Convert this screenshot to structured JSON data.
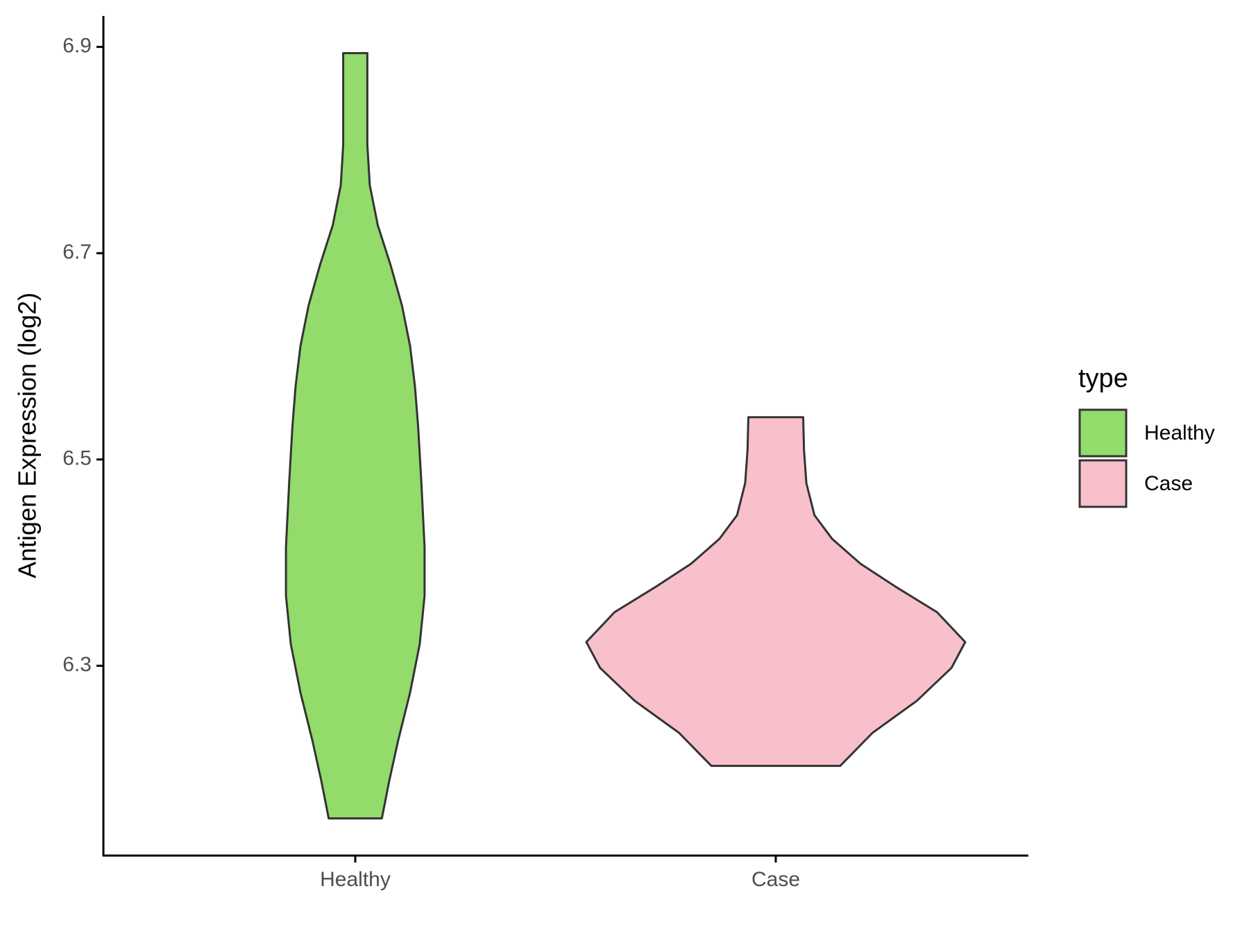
{
  "chart_data": {
    "type": "violin",
    "y_label": "Antigen Expression (log2)",
    "categories": [
      "Healthy",
      "Case"
    ],
    "ylim": [
      6.116,
      6.93
    ],
    "yticks": [
      6.3,
      6.5,
      6.7,
      6.9
    ],
    "legend_title": "type",
    "legend": "right",
    "series": [
      {
        "name": "Healthy",
        "color": "#93db6b",
        "values": [
          6.894,
          6.868,
          6.805,
          6.766,
          6.727,
          6.688,
          6.649,
          6.61,
          6.571,
          6.532,
          6.477,
          6.415,
          6.368,
          6.321,
          6.274,
          6.227,
          6.188,
          6.152
        ],
        "density": [
          15,
          15,
          15,
          18,
          28,
          44,
          58,
          68,
          74,
          78,
          82,
          86,
          86,
          80,
          68,
          53,
          42,
          33
        ]
      },
      {
        "name": "Case",
        "color": "#f7c0ca",
        "values": [
          6.541,
          6.509,
          6.477,
          6.446,
          6.423,
          6.399,
          6.376,
          6.352,
          6.323,
          6.298,
          6.266,
          6.235,
          6.203
        ],
        "density": [
          34,
          35,
          38,
          48,
          70,
          105,
          150,
          200,
          235,
          218,
          175,
          120,
          80
        ]
      }
    ]
  }
}
